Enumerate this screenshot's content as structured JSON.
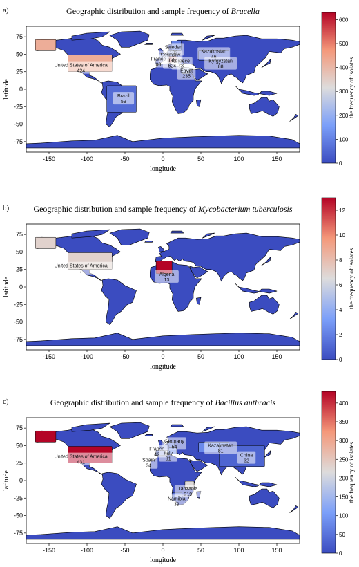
{
  "charts": [
    {
      "panel_label": "a)",
      "title_prefix": "Geographic distribution and sample frequency of ",
      "title_italic": "Brucella",
      "xlabel": "longitude",
      "ylabel": "latitude",
      "colorbar_label": "the frequency of isolates",
      "xticks": [
        "-150",
        "-100",
        "-50",
        "0",
        "50",
        "100",
        "150"
      ],
      "yticks": [
        "75",
        "50",
        "25",
        "0",
        "-25",
        "-50",
        "-75"
      ],
      "cbar_ticks": [
        "600",
        "500",
        "400",
        "300",
        "200",
        "100",
        "0"
      ],
      "annotations": [
        {
          "name": "Sweden",
          "value": "103"
        },
        {
          "name": "Germany",
          "value": "73"
        },
        {
          "name": "Kazakhstan",
          "value": "46"
        },
        {
          "name": "United States of America",
          "value": "424"
        },
        {
          "name": "Greece",
          "value": "52"
        },
        {
          "name": "France",
          "value": "80"
        },
        {
          "name": "Italy",
          "value": "624"
        },
        {
          "name": "Kyrgyzstan",
          "value": "88"
        },
        {
          "name": "Egypt",
          "value": "235"
        },
        {
          "name": "Brazil",
          "value": "59"
        }
      ]
    },
    {
      "panel_label": "b)",
      "title_prefix": "Geographic distribution and sample frequency of ",
      "title_italic": "Mycobacterium tuberculosis",
      "xlabel": "longitude",
      "ylabel": "latitude",
      "colorbar_label": "the frequency of isolates",
      "xticks": [
        "-150",
        "-100",
        "-50",
        "0",
        "50",
        "100",
        "150"
      ],
      "yticks": [
        "75",
        "50",
        "25",
        "0",
        "-25",
        "-50",
        "-75"
      ],
      "cbar_ticks": [
        "12",
        "10",
        "8",
        "6",
        "4",
        "2",
        "0"
      ],
      "annotations": [
        {
          "name": "United States of America",
          "value": "7"
        },
        {
          "name": "Algeria",
          "value": "13"
        }
      ]
    },
    {
      "panel_label": "c)",
      "title_prefix": "Geographic distribution and sample frequency of ",
      "title_italic": "Bacillus anthracis",
      "xlabel": "longitude",
      "ylabel": "latitude",
      "colorbar_label": "the frequency of isolates",
      "xticks": [
        "-150",
        "-100",
        "-50",
        "0",
        "50",
        "100",
        "150"
      ],
      "yticks": [
        "75",
        "50",
        "25",
        "0",
        "-25",
        "-50",
        "-75"
      ],
      "cbar_ticks": [
        "400",
        "350",
        "300",
        "250",
        "200",
        "150",
        "100",
        "50",
        "0"
      ],
      "annotations": [
        {
          "name": "Germany",
          "value": "54"
        },
        {
          "name": "Kazakhstan",
          "value": "81"
        },
        {
          "name": "United States of America",
          "value": "431"
        },
        {
          "name": "France",
          "value": "42"
        },
        {
          "name": "Italy",
          "value": "81"
        },
        {
          "name": "China",
          "value": "32"
        },
        {
          "name": "Spain",
          "value": "34"
        },
        {
          "name": "Tanzania",
          "value": "219"
        },
        {
          "name": "Namibia",
          "value": "39"
        }
      ]
    }
  ],
  "chart_data": [
    {
      "type": "choropleth-map",
      "title": "Geographic distribution and sample frequency of Brucella",
      "xlabel": "longitude",
      "ylabel": "latitude",
      "xlim": [
        -180,
        180
      ],
      "ylim": [
        -90,
        90
      ],
      "colorbar": {
        "label": "the frequency of isolates",
        "range": [
          0,
          630
        ],
        "colormap": "coolwarm"
      },
      "points": [
        {
          "country": "Sweden",
          "value": 103,
          "lon": 15,
          "lat": 62
        },
        {
          "country": "Germany",
          "value": 73,
          "lon": 10,
          "lat": 51
        },
        {
          "country": "Kazakhstan",
          "value": 46,
          "lon": 67,
          "lat": 48
        },
        {
          "country": "United States of America",
          "value": 424,
          "lon": -100,
          "lat": 39
        },
        {
          "country": "Greece",
          "value": 52,
          "lon": 22,
          "lat": 39
        },
        {
          "country": "France",
          "value": 80,
          "lon": 2,
          "lat": 46
        },
        {
          "country": "Italy",
          "value": 624,
          "lon": 12,
          "lat": 43
        },
        {
          "country": "Kyrgyzstan",
          "value": 88,
          "lon": 75,
          "lat": 41
        },
        {
          "country": "Egypt",
          "value": 235,
          "lon": 30,
          "lat": 27
        },
        {
          "country": "Brazil",
          "value": 59,
          "lon": -52,
          "lat": -10
        }
      ]
    },
    {
      "type": "choropleth-map",
      "title": "Geographic distribution and sample frequency of Mycobacterium tuberculosis",
      "xlabel": "longitude",
      "ylabel": "latitude",
      "xlim": [
        -180,
        180
      ],
      "ylim": [
        -90,
        90
      ],
      "colorbar": {
        "label": "the frequency of isolates",
        "range": [
          0,
          13
        ],
        "colormap": "coolwarm"
      },
      "points": [
        {
          "country": "United States of America",
          "value": 7,
          "lon": -100,
          "lat": 39
        },
        {
          "country": "Algeria",
          "value": 13,
          "lon": 3,
          "lat": 28
        }
      ]
    },
    {
      "type": "choropleth-map",
      "title": "Geographic distribution and sample frequency of Bacillus anthracis",
      "xlabel": "longitude",
      "ylabel": "latitude",
      "xlim": [
        -180,
        180
      ],
      "ylim": [
        -90,
        90
      ],
      "colorbar": {
        "label": "the frequency of isolates",
        "range": [
          0,
          431
        ],
        "colormap": "coolwarm"
      },
      "points": [
        {
          "country": "Germany",
          "value": 54,
          "lon": 10,
          "lat": 51
        },
        {
          "country": "Kazakhstan",
          "value": 81,
          "lon": 67,
          "lat": 48
        },
        {
          "country": "United States of America",
          "value": 431,
          "lon": -100,
          "lat": 39
        },
        {
          "country": "France",
          "value": 42,
          "lon": 2,
          "lat": 46
        },
        {
          "country": "Italy",
          "value": 81,
          "lon": 12,
          "lat": 43
        },
        {
          "country": "China",
          "value": 32,
          "lon": 104,
          "lat": 35
        },
        {
          "country": "Spain",
          "value": 34,
          "lon": -4,
          "lat": 40
        },
        {
          "country": "Tanzania",
          "value": 219,
          "lon": 35,
          "lat": -6
        },
        {
          "country": "Namibia",
          "value": 39,
          "lon": 17,
          "lat": -22
        }
      ]
    }
  ]
}
